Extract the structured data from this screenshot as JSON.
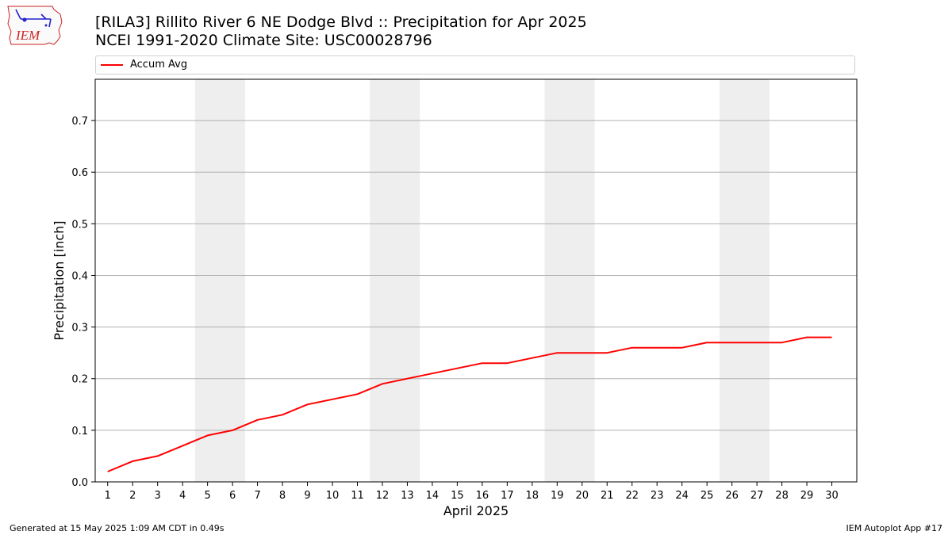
{
  "header": {
    "title_line1": "[RILA3] Rillito River 6 NE Dodge Blvd :: Precipitation for Apr 2025",
    "title_line2": "NCEI 1991-2020 Climate Site: USC00028796"
  },
  "logo": {
    "text": "IEM",
    "icon": "iowa-state-outline-logo",
    "color": "#cc2222"
  },
  "legend": {
    "entry": "Accum Avg",
    "color": "#ff0000",
    "placement": "top, spanning full width"
  },
  "footer": {
    "left": "Generated at 15 May 2025 1:09 AM CDT in 0.49s",
    "right": "IEM Autoplot App #17"
  },
  "chart_data": {
    "type": "line",
    "x": [
      1,
      2,
      3,
      4,
      5,
      6,
      7,
      8,
      9,
      10,
      11,
      12,
      13,
      14,
      15,
      16,
      17,
      18,
      19,
      20,
      21,
      22,
      23,
      24,
      25,
      26,
      27,
      28,
      29,
      30
    ],
    "series": [
      {
        "name": "Accum Avg",
        "color": "#ff0000",
        "values": [
          0.02,
          0.04,
          0.05,
          0.07,
          0.09,
          0.1,
          0.12,
          0.13,
          0.15,
          0.16,
          0.17,
          0.19,
          0.2,
          0.21,
          0.22,
          0.23,
          0.23,
          0.24,
          0.25,
          0.25,
          0.25,
          0.26,
          0.26,
          0.26,
          0.27,
          0.27,
          0.27,
          0.27,
          0.28,
          0.28
        ]
      }
    ],
    "xlabel": "April 2025",
    "ylabel": "Precipitation [inch]",
    "xticks": [
      "1",
      "2",
      "3",
      "4",
      "5",
      "6",
      "7",
      "8",
      "9",
      "10",
      "11",
      "12",
      "13",
      "14",
      "15",
      "16",
      "17",
      "18",
      "19",
      "20",
      "21",
      "22",
      "23",
      "24",
      "25",
      "26",
      "27",
      "28",
      "29",
      "30"
    ],
    "yticks": [
      "0.0",
      "0.1",
      "0.2",
      "0.3",
      "0.4",
      "0.5",
      "0.6",
      "0.7"
    ],
    "xlim": [
      0.5,
      31.0
    ],
    "ylim": [
      0,
      0.78
    ],
    "grid": "horizontal",
    "weekend_shading": [
      [
        4.5,
        6.5
      ],
      [
        11.5,
        13.5
      ],
      [
        18.5,
        20.5
      ],
      [
        25.5,
        27.5
      ]
    ],
    "weekend_color": "#eeeeee"
  }
}
